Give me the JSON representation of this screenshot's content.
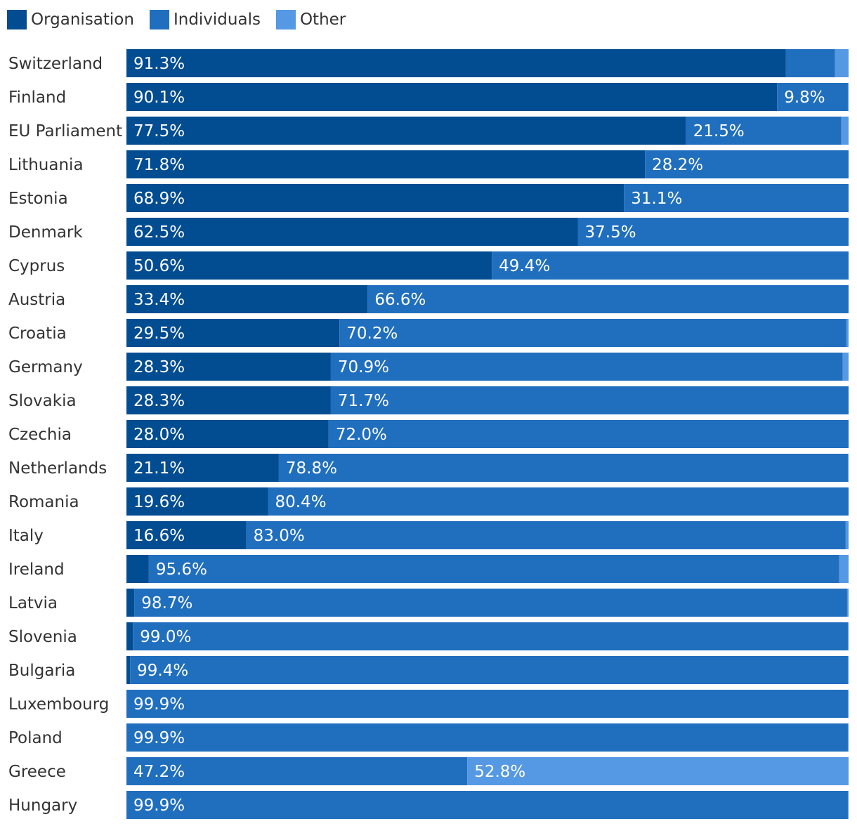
{
  "colors": {
    "organisation": "#024d91",
    "individuals": "#206fbe",
    "other": "#5598e3"
  },
  "legend": [
    {
      "key": "organisation",
      "label": "Organisation"
    },
    {
      "key": "individuals",
      "label": "Individuals"
    },
    {
      "key": "other",
      "label": "Other"
    }
  ],
  "chart_data": {
    "type": "bar",
    "orientation": "horizontal",
    "stacked": true,
    "xlim": [
      0,
      100
    ],
    "legend_position": "top-left",
    "categories": [
      "Switzerland",
      "Finland",
      "EU Parliament",
      "Lithuania",
      "Estonia",
      "Denmark",
      "Cyprus",
      "Austria",
      "Croatia",
      "Germany",
      "Slovakia",
      "Czechia",
      "Netherlands",
      "Romania",
      "Italy",
      "Ireland",
      "Latvia",
      "Slovenia",
      "Bulgaria",
      "Luxembourg",
      "Poland",
      "Greece",
      "Hungary"
    ],
    "series": [
      {
        "name": "Organisation",
        "key": "organisation",
        "values": [
          91.3,
          90.1,
          77.5,
          71.8,
          68.9,
          62.5,
          50.6,
          33.4,
          29.5,
          28.3,
          28.3,
          28.0,
          21.1,
          19.6,
          16.6,
          3.1,
          1.1,
          0.9,
          0.5,
          0.0,
          0.0,
          0.0,
          0.0
        ]
      },
      {
        "name": "Individuals",
        "key": "individuals",
        "values": [
          6.8,
          9.8,
          21.5,
          28.2,
          31.1,
          37.5,
          49.4,
          66.6,
          70.2,
          70.9,
          71.7,
          72.0,
          78.8,
          80.4,
          83.0,
          95.6,
          98.7,
          99.0,
          99.4,
          99.9,
          99.9,
          47.2,
          99.9
        ]
      },
      {
        "name": "Other",
        "key": "other",
        "values": [
          1.9,
          0.1,
          1.0,
          0.0,
          0.0,
          0.0,
          0.0,
          0.0,
          0.3,
          0.8,
          0.0,
          0.0,
          0.1,
          0.0,
          0.4,
          1.3,
          0.2,
          0.1,
          0.1,
          0.1,
          0.1,
          52.8,
          0.1
        ]
      }
    ],
    "data_labels": [
      [
        "91.3%",
        null,
        null
      ],
      [
        "90.1%",
        "9.8%",
        null
      ],
      [
        "77.5%",
        "21.5%",
        null
      ],
      [
        "71.8%",
        "28.2%",
        null
      ],
      [
        "68.9%",
        "31.1%",
        null
      ],
      [
        "62.5%",
        "37.5%",
        null
      ],
      [
        "50.6%",
        "49.4%",
        null
      ],
      [
        "33.4%",
        "66.6%",
        null
      ],
      [
        "29.5%",
        "70.2%",
        null
      ],
      [
        "28.3%",
        "70.9%",
        null
      ],
      [
        "28.3%",
        "71.7%",
        null
      ],
      [
        "28.0%",
        "72.0%",
        null
      ],
      [
        "21.1%",
        "78.8%",
        null
      ],
      [
        "19.6%",
        "80.4%",
        null
      ],
      [
        "16.6%",
        "83.0%",
        null
      ],
      [
        null,
        "95.6%",
        null
      ],
      [
        null,
        "98.7%",
        null
      ],
      [
        null,
        "99.0%",
        null
      ],
      [
        null,
        "99.4%",
        null
      ],
      [
        null,
        "99.9%",
        null
      ],
      [
        null,
        "99.9%",
        null
      ],
      [
        null,
        "47.2%",
        "52.8%"
      ],
      [
        null,
        "99.9%",
        null
      ]
    ]
  }
}
